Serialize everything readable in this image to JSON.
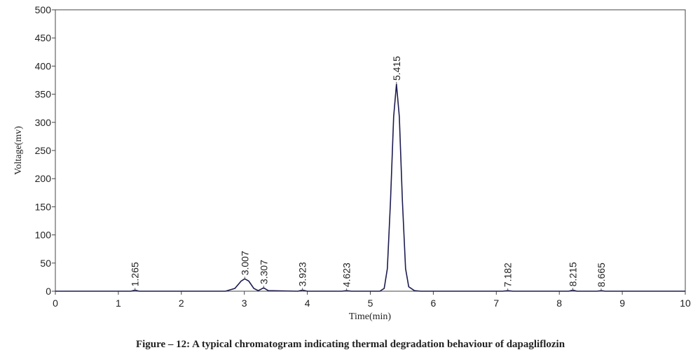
{
  "chart_data": {
    "type": "line",
    "x_label": "Time(min)",
    "y_label": "Voltage(mv)",
    "caption": "Figure – 12: A typical chromatogram indicating thermal degradation behaviour of dapagliflozin",
    "x": [
      0,
      1.2,
      1.265,
      1.33,
      2.7,
      2.85,
      2.95,
      3.007,
      3.07,
      3.15,
      3.22,
      3.307,
      3.38,
      3.85,
      3.923,
      4.0,
      4.55,
      4.623,
      4.7,
      5.15,
      5.22,
      5.27,
      5.32,
      5.37,
      5.415,
      5.46,
      5.51,
      5.56,
      5.61,
      5.7,
      5.8,
      7.1,
      7.182,
      7.26,
      8.15,
      8.215,
      8.28,
      8.6,
      8.665,
      8.73,
      10
    ],
    "series": [
      {
        "color": "#1c1c50",
        "values": [
          0,
          0,
          2,
          0,
          0,
          5,
          18,
          22,
          18,
          5,
          1,
          6,
          1,
          0,
          2,
          0,
          0,
          1,
          0,
          0,
          5,
          40,
          160,
          310,
          368,
          310,
          160,
          40,
          8,
          1,
          0,
          0,
          1,
          0,
          0,
          2,
          0,
          0,
          1,
          0,
          0
        ]
      }
    ],
    "peak_labels": [
      1.265,
      3.007,
      3.307,
      3.923,
      4.623,
      5.415,
      7.182,
      8.215,
      8.665
    ],
    "xlim": [
      0,
      10
    ],
    "xticks": [
      0,
      1,
      2,
      3,
      4,
      5,
      6,
      7,
      8,
      9,
      10
    ],
    "ylim": [
      0,
      500
    ],
    "yticks": [
      0,
      50,
      100,
      150,
      200,
      250,
      300,
      350,
      400,
      450,
      500
    ]
  }
}
